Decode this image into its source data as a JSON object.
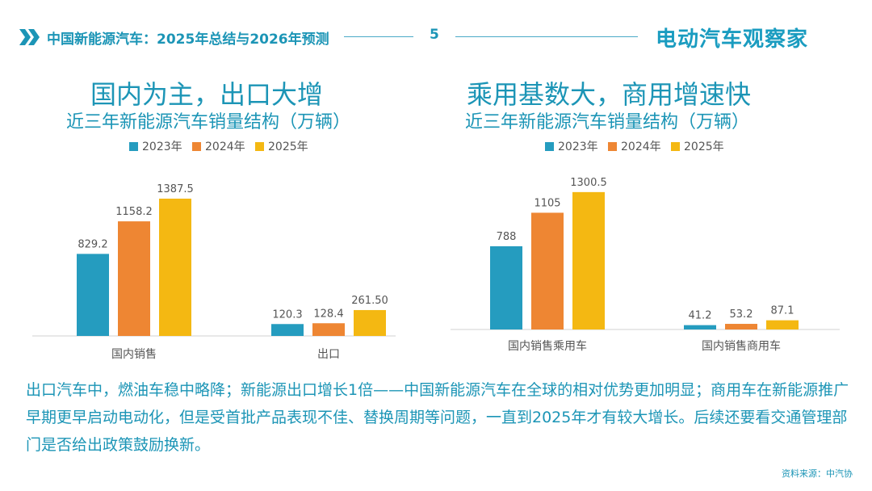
{
  "header": {
    "title": "中国新能源汽车：2025年总结与2026年预测",
    "page_number": "5",
    "brand": "电动汽车观察家"
  },
  "colors": {
    "primary": "#1c95b6",
    "series_2023": "#259cbf",
    "series_2024": "#ee8633",
    "series_2025": "#f4b812"
  },
  "chart_data": [
    {
      "type": "bar",
      "title": "国内为主，出口大增",
      "subtitle": "近三年新能源汽车销量结构（万辆）",
      "categories": [
        "国内销售",
        "出口"
      ],
      "series": [
        {
          "name": "2023年",
          "values": [
            829.2,
            120.3
          ],
          "labels": [
            "829.2",
            "120.3"
          ]
        },
        {
          "name": "2024年",
          "values": [
            1158.2,
            128.4
          ],
          "labels": [
            "1158.2",
            "128.4"
          ]
        },
        {
          "name": "2025年",
          "values": [
            1387.5,
            261.5
          ],
          "labels": [
            "1387.5",
            "261.50"
          ]
        }
      ],
      "legend_position": "top",
      "grid": false,
      "ylim": [
        0,
        1420
      ]
    },
    {
      "type": "bar",
      "title": "乘用基数大，商用增速快",
      "subtitle": "近三年新能源汽车销量结构（万辆）",
      "categories": [
        "国内销售乘用车",
        "国内销售商用车"
      ],
      "series": [
        {
          "name": "2023年",
          "values": [
            788,
            41.2
          ],
          "labels": [
            "788",
            "41.2"
          ]
        },
        {
          "name": "2024年",
          "values": [
            1105,
            53.2
          ],
          "labels": [
            "1105",
            "53.2"
          ]
        },
        {
          "name": "2025年",
          "values": [
            1300.5,
            87.1
          ],
          "labels": [
            "1300.5",
            "87.1"
          ]
        }
      ],
      "legend_position": "top",
      "grid": false,
      "ylim": [
        0,
        1330
      ]
    }
  ],
  "summary": {
    "text": "出口汽车中，燃油车稳中略降；新能源出口增长1倍——中国新能源汽车在全球的相对优势更加明显；商用车在新能源推广早期更早启动电动化，但是受首批产品表现不佳、替换周期等问题，一直到2025年才有较大增长。后续还要看交通管理部门是否给出政策鼓励换新。"
  },
  "source": "资料来源：中汽协"
}
